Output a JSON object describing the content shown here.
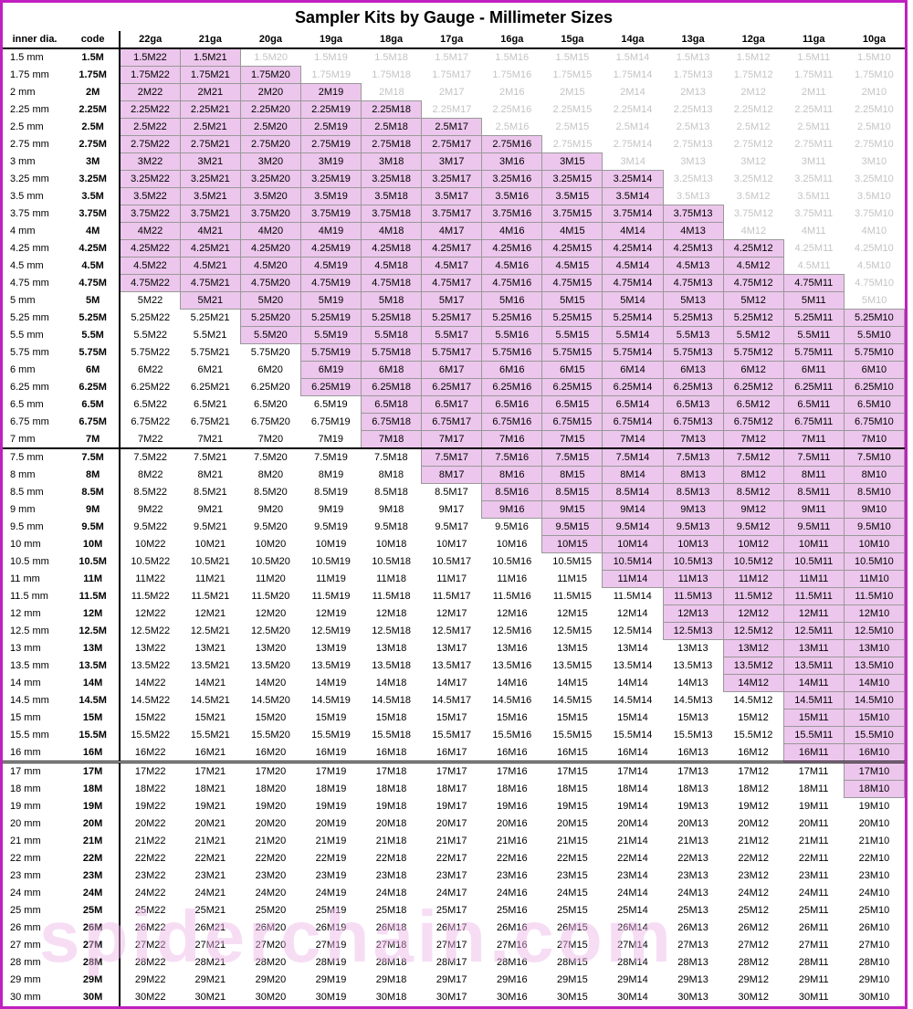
{
  "title": "Sampler Kits by Gauge - Millimeter Sizes",
  "watermark": "spiderchain.com",
  "headers": {
    "dia": "inner dia.",
    "code": "code",
    "gauges": [
      "22ga",
      "21ga",
      "20ga",
      "19ga",
      "18ga",
      "17ga",
      "16ga",
      "15ga",
      "14ga",
      "13ga",
      "12ga",
      "11ga",
      "10ga"
    ]
  },
  "gauge_suffix": [
    "22",
    "21",
    "20",
    "19",
    "18",
    "17",
    "16",
    "15",
    "14",
    "13",
    "12",
    "11",
    "10"
  ],
  "colors": {
    "highlight_bg": "#ecc6ec",
    "faded_text": "#c4c4c4",
    "border": "#c020c0"
  },
  "rows": [
    {
      "dia": "1.5 mm",
      "code": "1.5M",
      "hl": [
        1,
        1,
        0,
        0,
        0,
        0,
        0,
        0,
        0,
        0,
        0,
        0,
        0
      ],
      "fade_from": 2
    },
    {
      "dia": "1.75 mm",
      "code": "1.75M",
      "hl": [
        1,
        1,
        1,
        0,
        0,
        0,
        0,
        0,
        0,
        0,
        0,
        0,
        0
      ],
      "fade_from": 3
    },
    {
      "dia": "2 mm",
      "code": "2M",
      "hl": [
        1,
        1,
        1,
        1,
        0,
        0,
        0,
        0,
        0,
        0,
        0,
        0,
        0
      ],
      "fade_from": 4
    },
    {
      "dia": "2.25 mm",
      "code": "2.25M",
      "hl": [
        1,
        1,
        1,
        1,
        1,
        0,
        0,
        0,
        0,
        0,
        0,
        0,
        0
      ],
      "fade_from": 5
    },
    {
      "dia": "2.5 mm",
      "code": "2.5M",
      "hl": [
        1,
        1,
        1,
        1,
        1,
        1,
        0,
        0,
        0,
        0,
        0,
        0,
        0
      ],
      "fade_from": 6
    },
    {
      "dia": "2.75 mm",
      "code": "2.75M",
      "hl": [
        1,
        1,
        1,
        1,
        1,
        1,
        1,
        0,
        0,
        0,
        0,
        0,
        0
      ],
      "fade_from": 7
    },
    {
      "dia": "3 mm",
      "code": "3M",
      "hl": [
        1,
        1,
        1,
        1,
        1,
        1,
        1,
        1,
        0,
        0,
        0,
        0,
        0
      ],
      "fade_from": 8
    },
    {
      "dia": "3.25 mm",
      "code": "3.25M",
      "hl": [
        1,
        1,
        1,
        1,
        1,
        1,
        1,
        1,
        1,
        0,
        0,
        0,
        0
      ],
      "fade_from": 9
    },
    {
      "dia": "3.5 mm",
      "code": "3.5M",
      "hl": [
        1,
        1,
        1,
        1,
        1,
        1,
        1,
        1,
        1,
        0,
        0,
        0,
        0
      ],
      "fade_from": 9
    },
    {
      "dia": "3.75 mm",
      "code": "3.75M",
      "hl": [
        1,
        1,
        1,
        1,
        1,
        1,
        1,
        1,
        1,
        1,
        0,
        0,
        0
      ],
      "fade_from": 10
    },
    {
      "dia": "4 mm",
      "code": "4M",
      "hl": [
        1,
        1,
        1,
        1,
        1,
        1,
        1,
        1,
        1,
        1,
        0,
        0,
        0
      ],
      "fade_from": 10
    },
    {
      "dia": "4.25 mm",
      "code": "4.25M",
      "hl": [
        1,
        1,
        1,
        1,
        1,
        1,
        1,
        1,
        1,
        1,
        1,
        0,
        0
      ],
      "fade_from": 11
    },
    {
      "dia": "4.5 mm",
      "code": "4.5M",
      "hl": [
        1,
        1,
        1,
        1,
        1,
        1,
        1,
        1,
        1,
        1,
        1,
        0,
        0
      ],
      "fade_from": 11
    },
    {
      "dia": "4.75 mm",
      "code": "4.75M",
      "hl": [
        1,
        1,
        1,
        1,
        1,
        1,
        1,
        1,
        1,
        1,
        1,
        1,
        0
      ],
      "fade_from": 12
    },
    {
      "dia": "5 mm",
      "code": "5M",
      "hl": [
        0,
        1,
        1,
        1,
        1,
        1,
        1,
        1,
        1,
        1,
        1,
        1,
        0
      ],
      "fade_from": 12
    },
    {
      "dia": "5.25 mm",
      "code": "5.25M",
      "hl": [
        0,
        0,
        1,
        1,
        1,
        1,
        1,
        1,
        1,
        1,
        1,
        1,
        1
      ]
    },
    {
      "dia": "5.5 mm",
      "code": "5.5M",
      "hl": [
        0,
        0,
        1,
        1,
        1,
        1,
        1,
        1,
        1,
        1,
        1,
        1,
        1
      ]
    },
    {
      "dia": "5.75 mm",
      "code": "5.75M",
      "hl": [
        0,
        0,
        0,
        1,
        1,
        1,
        1,
        1,
        1,
        1,
        1,
        1,
        1
      ]
    },
    {
      "dia": "6 mm",
      "code": "6M",
      "hl": [
        0,
        0,
        0,
        1,
        1,
        1,
        1,
        1,
        1,
        1,
        1,
        1,
        1
      ]
    },
    {
      "dia": "6.25 mm",
      "code": "6.25M",
      "hl": [
        0,
        0,
        0,
        1,
        1,
        1,
        1,
        1,
        1,
        1,
        1,
        1,
        1
      ]
    },
    {
      "dia": "6.5 mm",
      "code": "6.5M",
      "hl": [
        0,
        0,
        0,
        0,
        1,
        1,
        1,
        1,
        1,
        1,
        1,
        1,
        1
      ]
    },
    {
      "dia": "6.75 mm",
      "code": "6.75M",
      "hl": [
        0,
        0,
        0,
        0,
        1,
        1,
        1,
        1,
        1,
        1,
        1,
        1,
        1
      ]
    },
    {
      "dia": "7 mm",
      "code": "7M",
      "hl": [
        0,
        0,
        0,
        0,
        1,
        1,
        1,
        1,
        1,
        1,
        1,
        1,
        1
      ],
      "sep": true
    },
    {
      "dia": "7.5 mm",
      "code": "7.5M",
      "hl": [
        0,
        0,
        0,
        0,
        0,
        1,
        1,
        1,
        1,
        1,
        1,
        1,
        1
      ]
    },
    {
      "dia": "8 mm",
      "code": "8M",
      "hl": [
        0,
        0,
        0,
        0,
        0,
        1,
        1,
        1,
        1,
        1,
        1,
        1,
        1
      ]
    },
    {
      "dia": "8.5 mm",
      "code": "8.5M",
      "hl": [
        0,
        0,
        0,
        0,
        0,
        0,
        1,
        1,
        1,
        1,
        1,
        1,
        1
      ]
    },
    {
      "dia": "9 mm",
      "code": "9M",
      "hl": [
        0,
        0,
        0,
        0,
        0,
        0,
        1,
        1,
        1,
        1,
        1,
        1,
        1
      ]
    },
    {
      "dia": "9.5 mm",
      "code": "9.5M",
      "hl": [
        0,
        0,
        0,
        0,
        0,
        0,
        0,
        1,
        1,
        1,
        1,
        1,
        1
      ]
    },
    {
      "dia": "10 mm",
      "code": "10M",
      "hl": [
        0,
        0,
        0,
        0,
        0,
        0,
        0,
        1,
        1,
        1,
        1,
        1,
        1
      ]
    },
    {
      "dia": "10.5 mm",
      "code": "10.5M",
      "hl": [
        0,
        0,
        0,
        0,
        0,
        0,
        0,
        0,
        1,
        1,
        1,
        1,
        1
      ]
    },
    {
      "dia": "11 mm",
      "code": "11M",
      "hl": [
        0,
        0,
        0,
        0,
        0,
        0,
        0,
        0,
        1,
        1,
        1,
        1,
        1
      ]
    },
    {
      "dia": "11.5 mm",
      "code": "11.5M",
      "hl": [
        0,
        0,
        0,
        0,
        0,
        0,
        0,
        0,
        0,
        1,
        1,
        1,
        1
      ]
    },
    {
      "dia": "12 mm",
      "code": "12M",
      "hl": [
        0,
        0,
        0,
        0,
        0,
        0,
        0,
        0,
        0,
        1,
        1,
        1,
        1
      ]
    },
    {
      "dia": "12.5 mm",
      "code": "12.5M",
      "hl": [
        0,
        0,
        0,
        0,
        0,
        0,
        0,
        0,
        0,
        1,
        1,
        1,
        1
      ]
    },
    {
      "dia": "13 mm",
      "code": "13M",
      "hl": [
        0,
        0,
        0,
        0,
        0,
        0,
        0,
        0,
        0,
        0,
        1,
        1,
        1
      ]
    },
    {
      "dia": "13.5 mm",
      "code": "13.5M",
      "hl": [
        0,
        0,
        0,
        0,
        0,
        0,
        0,
        0,
        0,
        0,
        1,
        1,
        1
      ]
    },
    {
      "dia": "14 mm",
      "code": "14M",
      "hl": [
        0,
        0,
        0,
        0,
        0,
        0,
        0,
        0,
        0,
        0,
        1,
        1,
        1
      ]
    },
    {
      "dia": "14.5 mm",
      "code": "14.5M",
      "hl": [
        0,
        0,
        0,
        0,
        0,
        0,
        0,
        0,
        0,
        0,
        0,
        1,
        1
      ]
    },
    {
      "dia": "15 mm",
      "code": "15M",
      "hl": [
        0,
        0,
        0,
        0,
        0,
        0,
        0,
        0,
        0,
        0,
        0,
        1,
        1
      ]
    },
    {
      "dia": "15.5 mm",
      "code": "15.5M",
      "hl": [
        0,
        0,
        0,
        0,
        0,
        0,
        0,
        0,
        0,
        0,
        0,
        1,
        1
      ]
    },
    {
      "dia": "16 mm",
      "code": "16M",
      "hl": [
        0,
        0,
        0,
        0,
        0,
        0,
        0,
        0,
        0,
        0,
        0,
        1,
        1
      ],
      "dsep": true
    },
    {
      "dia": "17 mm",
      "code": "17M",
      "hl": [
        0,
        0,
        0,
        0,
        0,
        0,
        0,
        0,
        0,
        0,
        0,
        0,
        1
      ]
    },
    {
      "dia": "18 mm",
      "code": "18M",
      "hl": [
        0,
        0,
        0,
        0,
        0,
        0,
        0,
        0,
        0,
        0,
        0,
        0,
        1
      ]
    },
    {
      "dia": "19 mm",
      "code": "19M",
      "hl": [
        0,
        0,
        0,
        0,
        0,
        0,
        0,
        0,
        0,
        0,
        0,
        0,
        0
      ]
    },
    {
      "dia": "20 mm",
      "code": "20M",
      "hl": [
        0,
        0,
        0,
        0,
        0,
        0,
        0,
        0,
        0,
        0,
        0,
        0,
        0
      ]
    },
    {
      "dia": "21 mm",
      "code": "21M",
      "hl": [
        0,
        0,
        0,
        0,
        0,
        0,
        0,
        0,
        0,
        0,
        0,
        0,
        0
      ]
    },
    {
      "dia": "22 mm",
      "code": "22M",
      "hl": [
        0,
        0,
        0,
        0,
        0,
        0,
        0,
        0,
        0,
        0,
        0,
        0,
        0
      ]
    },
    {
      "dia": "23 mm",
      "code": "23M",
      "hl": [
        0,
        0,
        0,
        0,
        0,
        0,
        0,
        0,
        0,
        0,
        0,
        0,
        0
      ]
    },
    {
      "dia": "24 mm",
      "code": "24M",
      "hl": [
        0,
        0,
        0,
        0,
        0,
        0,
        0,
        0,
        0,
        0,
        0,
        0,
        0
      ]
    },
    {
      "dia": "25 mm",
      "code": "25M",
      "hl": [
        0,
        0,
        0,
        0,
        0,
        0,
        0,
        0,
        0,
        0,
        0,
        0,
        0
      ]
    },
    {
      "dia": "26 mm",
      "code": "26M",
      "hl": [
        0,
        0,
        0,
        0,
        0,
        0,
        0,
        0,
        0,
        0,
        0,
        0,
        0
      ]
    },
    {
      "dia": "27 mm",
      "code": "27M",
      "hl": [
        0,
        0,
        0,
        0,
        0,
        0,
        0,
        0,
        0,
        0,
        0,
        0,
        0
      ]
    },
    {
      "dia": "28 mm",
      "code": "28M",
      "hl": [
        0,
        0,
        0,
        0,
        0,
        0,
        0,
        0,
        0,
        0,
        0,
        0,
        0
      ]
    },
    {
      "dia": "29 mm",
      "code": "29M",
      "hl": [
        0,
        0,
        0,
        0,
        0,
        0,
        0,
        0,
        0,
        0,
        0,
        0,
        0
      ]
    },
    {
      "dia": "30 mm",
      "code": "30M",
      "hl": [
        0,
        0,
        0,
        0,
        0,
        0,
        0,
        0,
        0,
        0,
        0,
        0,
        0
      ]
    }
  ]
}
